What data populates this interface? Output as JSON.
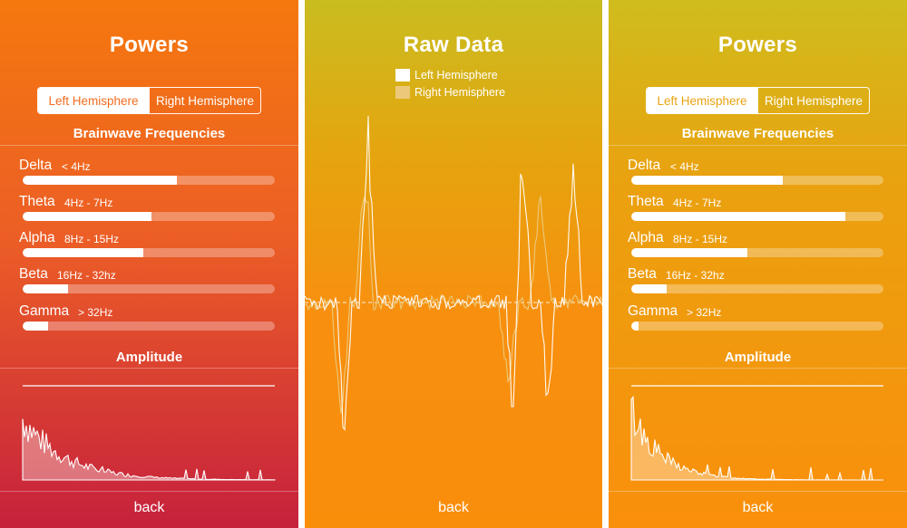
{
  "screens": [
    {
      "title": "Powers",
      "segments": [
        "Left Hemisphere",
        "Right Hemisphere"
      ],
      "selected_segment": 0,
      "section_title": "Brainwave Frequencies",
      "bands": [
        {
          "name": "Delta",
          "range": "< 4Hz",
          "level": 0.61
        },
        {
          "name": "Theta",
          "range": "4Hz - 7Hz",
          "level": 0.51
        },
        {
          "name": "Alpha",
          "range": "8Hz - 15Hz",
          "level": 0.48
        },
        {
          "name": "Beta",
          "range": "16Hz - 32hz",
          "level": 0.18
        },
        {
          "name": "Gamma",
          "range": "> 32Hz",
          "level": 0.1
        }
      ],
      "amplitude_title": "Amplitude",
      "back_label": "back",
      "segment_active_text_color": "#f26c1f"
    },
    {
      "title": "Raw Data",
      "legend": [
        {
          "label": "Left Hemisphere",
          "color": "#ffffff"
        },
        {
          "label": "Right Hemisphere",
          "color": "#ecc97a"
        }
      ],
      "back_label": "back"
    },
    {
      "title": "Powers",
      "segments": [
        "Left Hemisphere",
        "Right Hemisphere"
      ],
      "selected_segment": 0,
      "section_title": "Brainwave Frequencies",
      "bands": [
        {
          "name": "Delta",
          "range": "< 4Hz",
          "level": 0.6
        },
        {
          "name": "Theta",
          "range": "4Hz - 7Hz",
          "level": 0.85
        },
        {
          "name": "Alpha",
          "range": "8Hz - 15Hz",
          "level": 0.46
        },
        {
          "name": "Beta",
          "range": "16Hz - 32hz",
          "level": 0.14
        },
        {
          "name": "Gamma",
          "range": "> 32Hz",
          "level": 0.03
        }
      ],
      "amplitude_title": "Amplitude",
      "back_label": "back",
      "segment_active_text_color": "#e9a313"
    }
  ]
}
